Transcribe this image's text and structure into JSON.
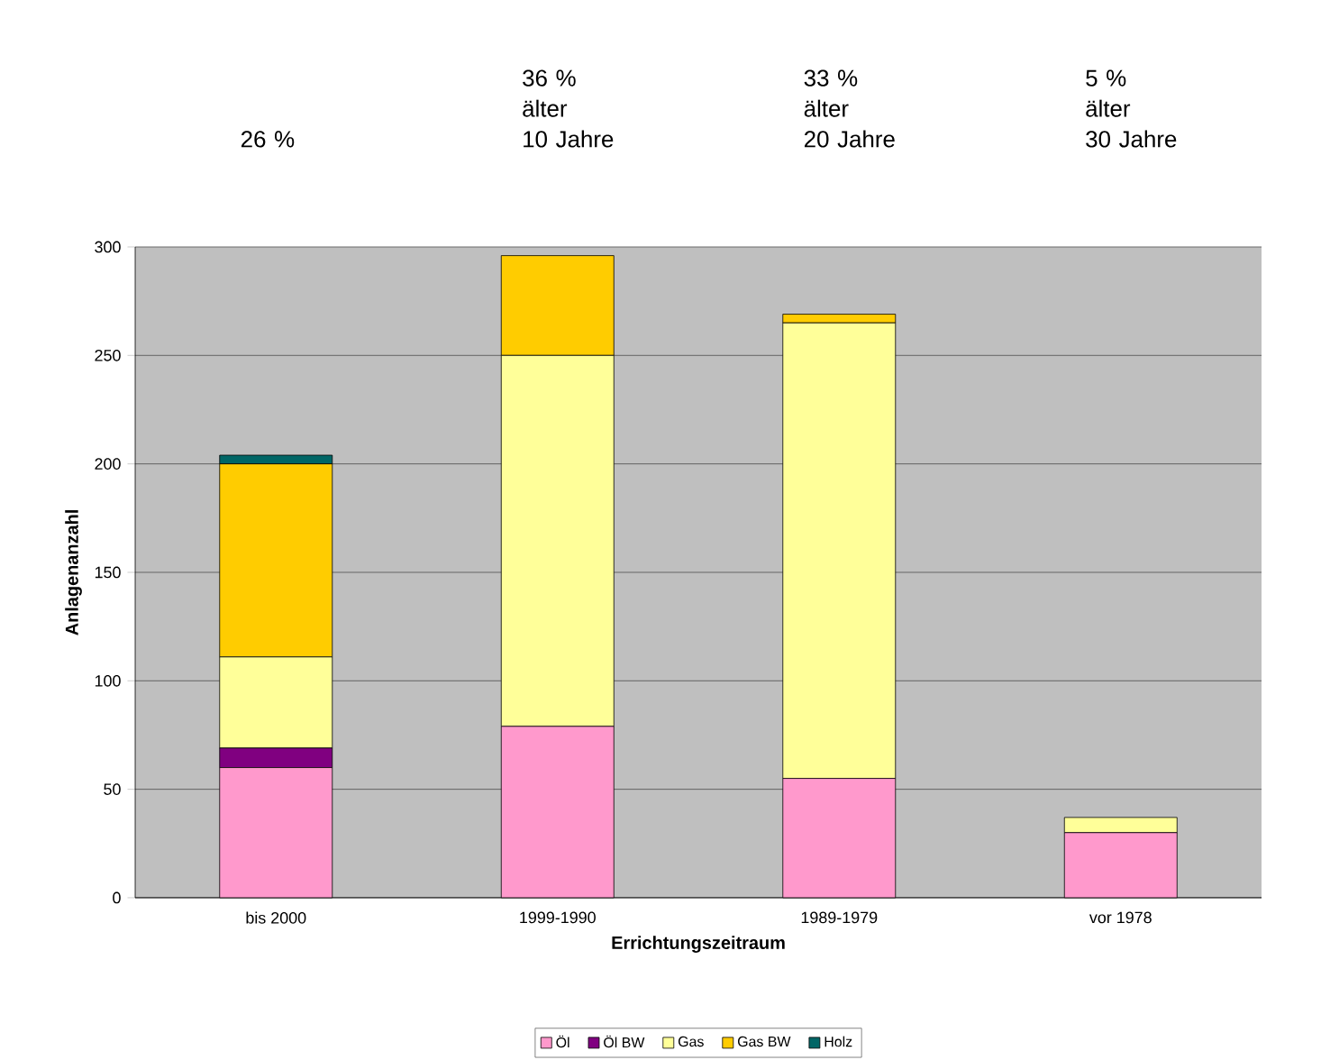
{
  "chart_data": {
    "type": "bar",
    "stacked": true,
    "categories": [
      "bis 2000",
      "1999-1990",
      "1989-1979",
      "vor 1978"
    ],
    "series": [
      {
        "name": "Öl",
        "color": "#ff99cc",
        "values": [
          60,
          79,
          55,
          30
        ]
      },
      {
        "name": "Öl BW",
        "color": "#800080",
        "values": [
          9,
          0,
          0,
          0
        ]
      },
      {
        "name": "Gas",
        "color": "#ffff99",
        "values": [
          42,
          171,
          210,
          7
        ]
      },
      {
        "name": "Gas BW",
        "color": "#ffcc00",
        "values": [
          89,
          46,
          4,
          0
        ]
      },
      {
        "name": "Holz",
        "color": "#006666",
        "values": [
          4,
          0,
          0,
          0
        ]
      }
    ],
    "xlabel": "Errichtungszeitraum",
    "ylabel": "Anlagenanzahl",
    "ylim": [
      0,
      300
    ],
    "yticks": [
      0,
      50,
      100,
      150,
      200,
      250,
      300
    ],
    "grid": "y",
    "legend": "bottom",
    "annotations": [
      "26 %",
      "36 %\nälter\n10 Jahre",
      "33 %\nälter\n20 Jahre",
      "5 %\nälter\n30 Jahre"
    ]
  }
}
